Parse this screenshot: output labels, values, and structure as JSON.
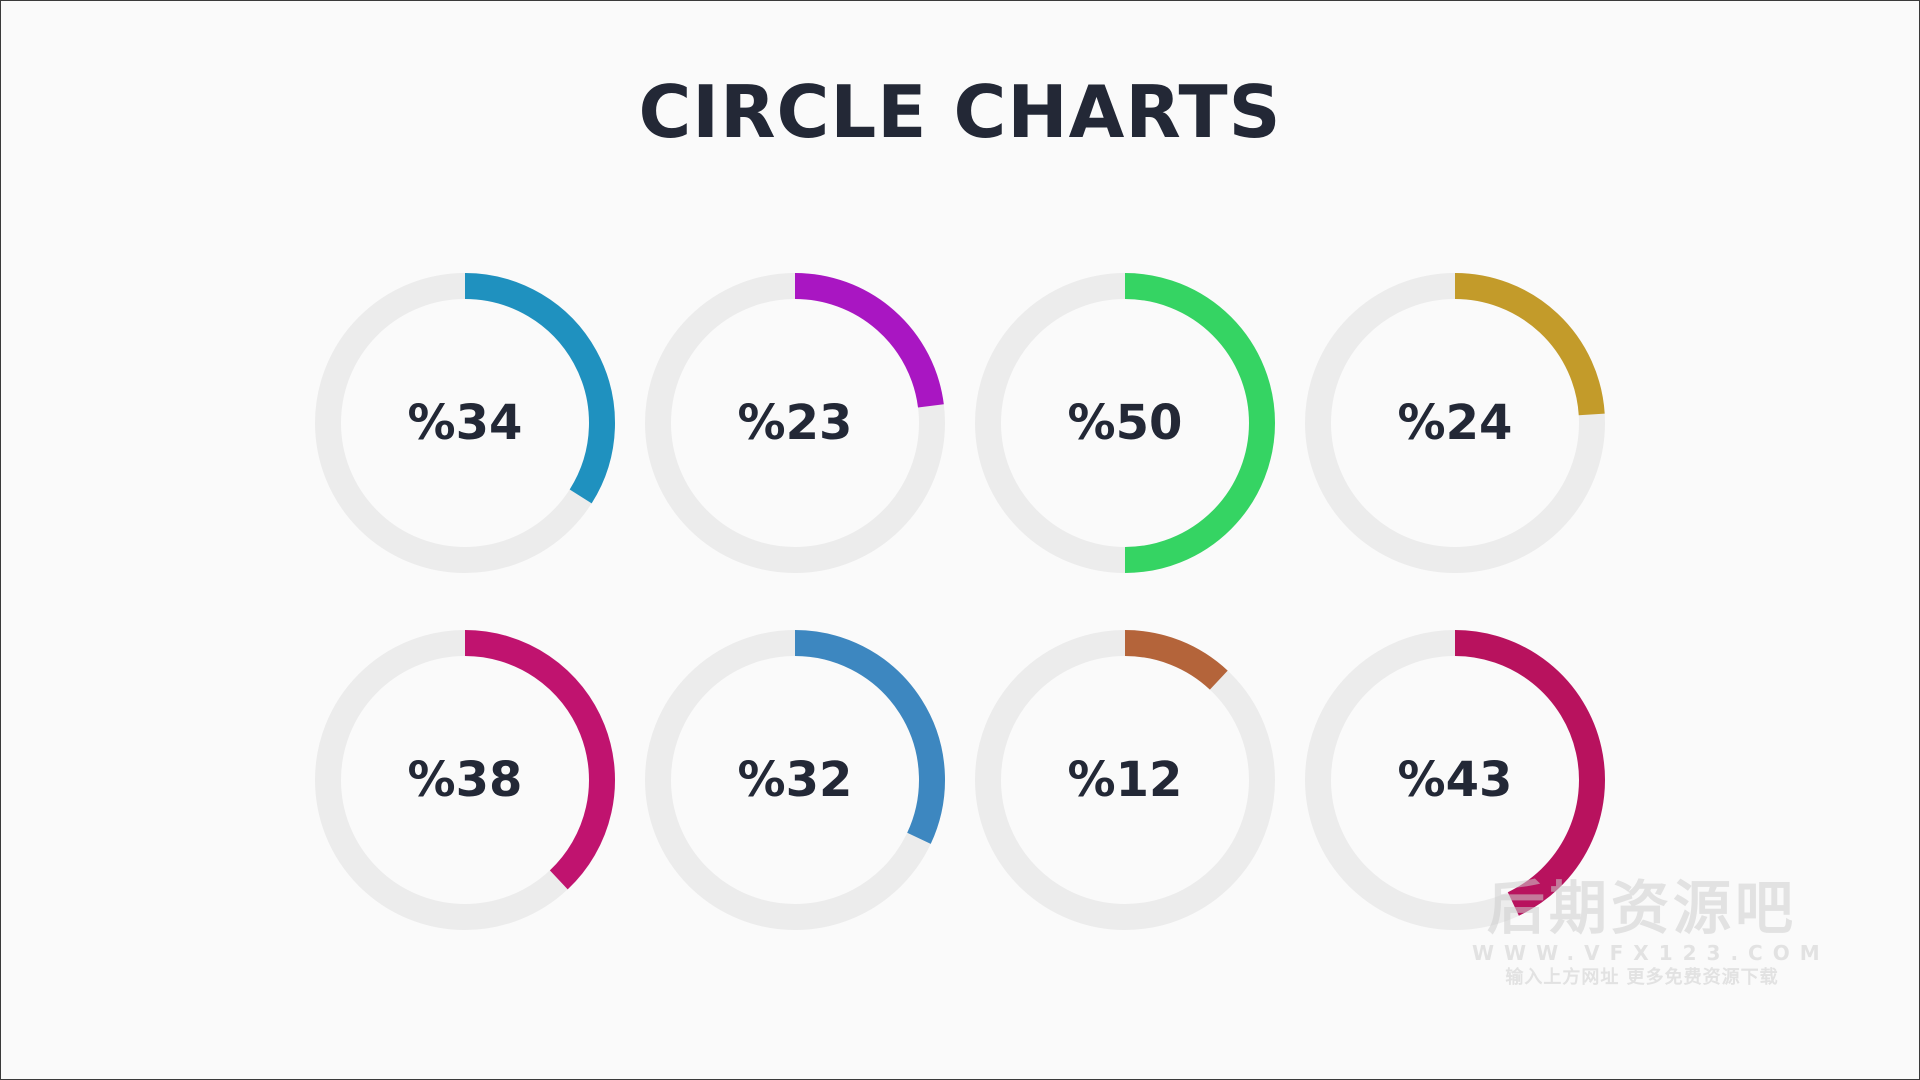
{
  "title": "CIRCLE CHARTS",
  "track_color": "#ececec",
  "chart_data": [
    {
      "type": "pie",
      "label": "%34",
      "value": 34,
      "color": "#1f91bf"
    },
    {
      "type": "pie",
      "label": "%23",
      "value": 23,
      "color": "#a916c2"
    },
    {
      "type": "pie",
      "label": "%50",
      "value": 50,
      "color": "#35d463"
    },
    {
      "type": "pie",
      "label": "%24",
      "value": 24,
      "color": "#c39b2a"
    },
    {
      "type": "pie",
      "label": "%38",
      "value": 38,
      "color": "#c0136f"
    },
    {
      "type": "pie",
      "label": "%32",
      "value": 32,
      "color": "#3d87c0"
    },
    {
      "type": "pie",
      "label": "%12",
      "value": 12,
      "color": "#b4643a"
    },
    {
      "type": "pie",
      "label": "%43",
      "value": 43,
      "color": "#b8125e"
    }
  ],
  "watermark": {
    "line1": "后期资源吧",
    "line2": "WWW.VFX123.COM",
    "line3": "输入上方网址 更多免费资源下载"
  }
}
